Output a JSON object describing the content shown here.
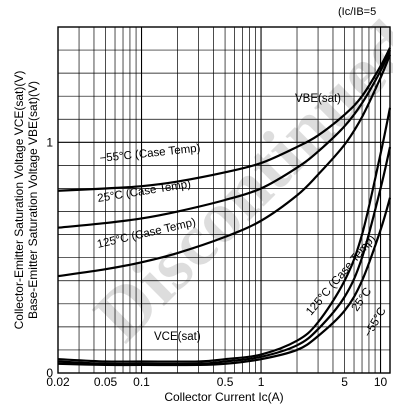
{
  "chart_data": {
    "type": "line",
    "title": "",
    "condition": "(Ic/IB=5",
    "xlabel": "Collector Current Ic(A)",
    "ylabel_1": "Collector-Emitter Saturation Voltage VCE(sat)(V)",
    "ylabel_2": "Base-Emitter Saturation Voltage VBE(sat)(V)",
    "x_scale": "log",
    "xlim": [
      0.02,
      12
    ],
    "ylim": [
      0,
      1.5
    ],
    "grid": true,
    "x_ticks": [
      0.02,
      0.05,
      0.1,
      0.5,
      1,
      5,
      10
    ],
    "x_tick_labels": [
      "0.02",
      "0.05",
      "0.1",
      "0.5",
      "1",
      "5",
      "10"
    ],
    "y_ticks": [
      0,
      1
    ],
    "y_tick_labels": [
      "0",
      "1"
    ],
    "series": [
      {
        "name": "VBE(sat) −55°C (Case Temp)",
        "label": "−55°C (Case Temp)",
        "x": [
          0.02,
          0.05,
          0.1,
          0.2,
          0.5,
          1,
          2,
          3,
          5,
          7,
          10,
          12
        ],
        "y": [
          0.79,
          0.8,
          0.81,
          0.83,
          0.87,
          0.91,
          0.98,
          1.03,
          1.12,
          1.2,
          1.33,
          1.41
        ]
      },
      {
        "name": "VBE(sat) 25°C (Case Temp)",
        "label": "25°C (Case Temp)",
        "x": [
          0.02,
          0.05,
          0.1,
          0.2,
          0.5,
          1,
          2,
          3,
          5,
          7,
          10,
          12
        ],
        "y": [
          0.63,
          0.65,
          0.67,
          0.7,
          0.75,
          0.8,
          0.89,
          0.96,
          1.07,
          1.17,
          1.31,
          1.4
        ]
      },
      {
        "name": "VBE(sat) 125°C (Case Temp)",
        "label": "125°C (Case Temp)",
        "x": [
          0.02,
          0.05,
          0.1,
          0.2,
          0.5,
          1,
          2,
          3,
          5,
          7,
          10,
          12
        ],
        "y": [
          0.42,
          0.45,
          0.48,
          0.52,
          0.59,
          0.66,
          0.77,
          0.86,
          0.99,
          1.11,
          1.28,
          1.38
        ]
      },
      {
        "name": "VCE(sat) 125°C (Case Temp)",
        "label": "125°C (Case Temp)",
        "x": [
          0.02,
          0.05,
          0.1,
          0.3,
          0.5,
          1,
          2,
          3,
          5,
          7,
          10,
          12
        ],
        "y": [
          0.06,
          0.05,
          0.05,
          0.05,
          0.06,
          0.08,
          0.14,
          0.22,
          0.4,
          0.6,
          0.95,
          1.15
        ]
      },
      {
        "name": "VCE(sat) 25°C",
        "label": "25°C",
        "x": [
          0.02,
          0.05,
          0.1,
          0.3,
          0.5,
          1,
          2,
          3,
          5,
          7,
          10,
          12
        ],
        "y": [
          0.05,
          0.04,
          0.04,
          0.04,
          0.05,
          0.07,
          0.12,
          0.19,
          0.33,
          0.5,
          0.8,
          0.98
        ]
      },
      {
        "name": "VCE(sat) −55°C",
        "label": "−55°C",
        "x": [
          0.02,
          0.05,
          0.1,
          0.3,
          0.5,
          1,
          2,
          3,
          5,
          7,
          10,
          12
        ],
        "y": [
          0.04,
          0.035,
          0.035,
          0.035,
          0.04,
          0.06,
          0.1,
          0.16,
          0.27,
          0.4,
          0.62,
          0.76
        ]
      }
    ],
    "annotations": [
      {
        "text": "VBE(sat)",
        "target": "VBE(sat) curves"
      },
      {
        "text": "VCE(sat)",
        "target": "VCE(sat) curves"
      }
    ],
    "watermark": "Discontinued for"
  }
}
